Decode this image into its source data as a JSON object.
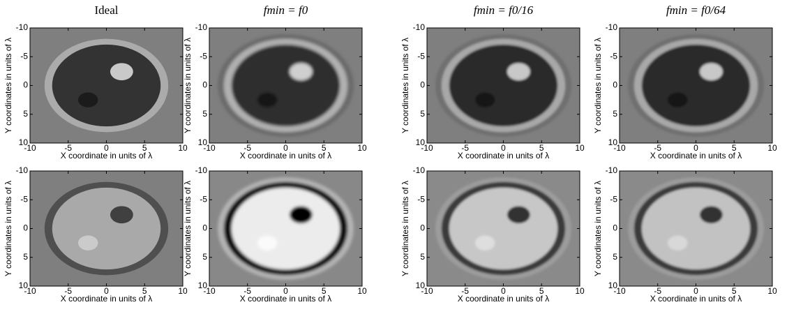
{
  "chart_data": [
    {
      "type": "image",
      "title": "Ideal",
      "xlabel": "X coordinate in units of λ",
      "ylabel": "Y coordinates in units of λ",
      "xlim": [
        -10,
        10
      ],
      "ylim": [
        -10,
        10
      ],
      "invert_y": true,
      "xticks": [
        -10,
        -5,
        0,
        5,
        10
      ],
      "yticks": [
        -10,
        -5,
        0,
        5,
        10
      ]
    },
    {
      "type": "image",
      "title": "fmin = f0",
      "xlabel": "X coordinate in units of λ",
      "ylabel": "Y coordinates in units of λ",
      "xlim": [
        -10,
        10
      ],
      "ylim": [
        -10,
        10
      ],
      "invert_y": true,
      "xticks": [
        -10,
        -5,
        0,
        5,
        10
      ],
      "yticks": [
        -10,
        -5,
        0,
        5,
        10
      ]
    },
    {
      "type": "image",
      "title": "fmin = f0/16",
      "xlabel": "X coordinate in units of λ",
      "ylabel": "Y coordinates in units of λ",
      "xlim": [
        -10,
        10
      ],
      "ylim": [
        -10,
        10
      ],
      "invert_y": true,
      "xticks": [
        -10,
        -5,
        0,
        5,
        10
      ],
      "yticks": [
        -10,
        -5,
        0,
        5,
        10
      ]
    },
    {
      "type": "image",
      "title": "fmin = f0/64",
      "xlabel": "X coordinate in units of λ",
      "ylabel": "Y coordinates in units of λ",
      "xlim": [
        -10,
        10
      ],
      "ylim": [
        -10,
        10
      ],
      "invert_y": true,
      "xticks": [
        -10,
        -5,
        0,
        5,
        10
      ],
      "yticks": [
        -10,
        -5,
        0,
        5,
        10
      ]
    },
    {
      "type": "image",
      "xlabel": "X coordinate in units of λ",
      "ylabel": "Y coordinates in units of λ",
      "xlim": [
        -10,
        10
      ],
      "ylim": [
        -10,
        10
      ],
      "invert_y": true,
      "xticks": [
        -10,
        -5,
        0,
        5,
        10
      ],
      "yticks": [
        -10,
        -5,
        0,
        5,
        10
      ]
    },
    {
      "type": "image",
      "xlabel": "X coordinate in units of λ",
      "ylabel": "Y coordinates in units of λ",
      "xlim": [
        -10,
        10
      ],
      "ylim": [
        -10,
        10
      ],
      "invert_y": true,
      "xticks": [
        -10,
        -5,
        0,
        5,
        10
      ],
      "yticks": [
        -10,
        -5,
        0,
        5,
        10
      ]
    },
    {
      "type": "image",
      "xlabel": "X coordinate in units of λ",
      "ylabel": "Y coordinates in units of λ",
      "xlim": [
        -10,
        10
      ],
      "ylim": [
        -10,
        10
      ],
      "invert_y": true,
      "xticks": [
        -10,
        -5,
        0,
        5,
        10
      ],
      "yticks": [
        -10,
        -5,
        0,
        5,
        10
      ]
    },
    {
      "type": "image",
      "xlabel": "X coordinate in units of λ",
      "ylabel": "Y coordinates in units of λ",
      "xlim": [
        -10,
        10
      ],
      "ylim": [
        -10,
        10
      ],
      "invert_y": true,
      "xticks": [
        -10,
        -5,
        0,
        5,
        10
      ],
      "yticks": [
        -10,
        -5,
        0,
        5,
        10
      ]
    }
  ]
}
